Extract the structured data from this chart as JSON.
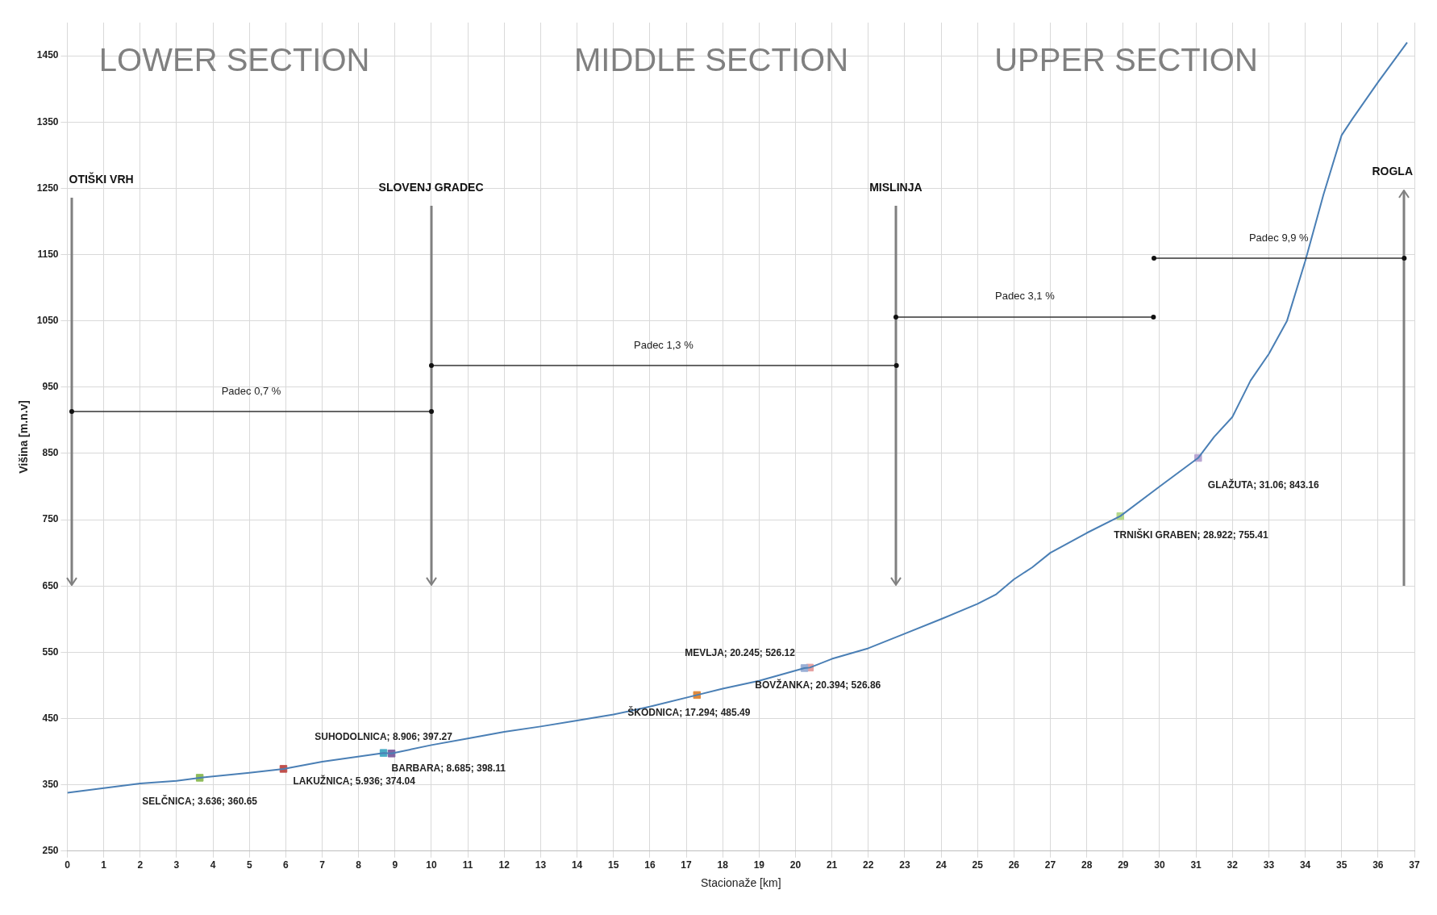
{
  "chart_data": {
    "type": "line",
    "xlabel": "Stacionaže [km]",
    "ylabel": "Višina [m.n.v]",
    "xlim": [
      0,
      37
    ],
    "xticks": [
      0,
      1,
      2,
      3,
      4,
      5,
      6,
      7,
      8,
      9,
      10,
      11,
      12,
      13,
      14,
      15,
      16,
      17,
      18,
      19,
      20,
      21,
      22,
      23,
      24,
      25,
      26,
      27,
      28,
      29,
      30,
      31,
      32,
      33,
      34,
      35,
      36,
      37
    ],
    "ylim": [
      250,
      1500
    ],
    "yticks": [
      250,
      350,
      450,
      550,
      650,
      750,
      850,
      950,
      1050,
      1150,
      1250,
      1350,
      1450
    ],
    "grid": true,
    "legend": false,
    "marker": "square",
    "series": [
      {
        "color": "#4a7fb5",
        "marker": "none",
        "x": [
          0,
          1,
          2,
          3,
          3.636,
          5,
          5.936,
          7,
          8.685,
          8.906,
          10,
          11,
          12,
          13,
          14,
          15,
          15.5,
          16,
          17.294,
          18,
          19,
          20.245,
          20.394,
          21,
          22,
          23,
          24,
          25,
          25.5,
          26,
          26.5,
          27,
          28,
          28.922,
          30,
          31.06,
          31.5,
          32,
          32.5,
          33,
          33.5,
          34,
          34.5,
          35,
          35.3,
          36,
          36.8
        ],
        "values": [
          338,
          345,
          352,
          356,
          360.65,
          368,
          374.04,
          385,
          398.11,
          397.27,
          410,
          420,
          430,
          438,
          447,
          456,
          462,
          468,
          485.49,
          495,
          507,
          526.12,
          526.86,
          540,
          556,
          578,
          600,
          623,
          637,
          660,
          678,
          700,
          730,
          755.41,
          800,
          843.16,
          875,
          905,
          960,
          1000,
          1050,
          1140,
          1240,
          1330,
          1355,
          1410,
          1470
        ]
      },
      {
        "type": "scatter",
        "color": "#8fbc5a",
        "x": [
          3.636
        ],
        "values": [
          360.65
        ],
        "value_labels": [
          "SELČNICA; 3.636; 360.65"
        ]
      },
      {
        "type": "scatter",
        "color": "#c0504d",
        "x": [
          5.936
        ],
        "values": [
          374.04
        ],
        "value_labels": [
          "LAKUŽNICA; 5.936; 374.04"
        ]
      },
      {
        "type": "scatter",
        "color": "#4bacc6",
        "x": [
          8.685
        ],
        "values": [
          398.11
        ],
        "value_labels": [
          "BARBARA; 8.685; 398.11"
        ]
      },
      {
        "type": "scatter",
        "color": "#8064a2",
        "x": [
          8.906
        ],
        "values": [
          397.27
        ],
        "value_labels": [
          "SUHODOLNICA; 8.906; 397.27"
        ]
      },
      {
        "type": "scatter",
        "color": "#e08a3c",
        "x": [
          17.294
        ],
        "values": [
          485.49
        ],
        "value_labels": [
          "ŠKODNICA; 17.294; 485.49"
        ]
      },
      {
        "type": "scatter",
        "color": "#9bb0d6",
        "x": [
          20.245
        ],
        "values": [
          526.12
        ],
        "value_labels": [
          "MEVLJA; 20.245; 526.12"
        ]
      },
      {
        "type": "scatter",
        "color": "#e6a0a0",
        "x": [
          20.394
        ],
        "values": [
          526.86
        ],
        "value_labels": [
          "BOVŽANKA; 20.394; 526.86"
        ]
      },
      {
        "type": "scatter",
        "color": "#b5d88a",
        "x": [
          28.922
        ],
        "values": [
          755.41
        ],
        "value_labels": [
          "TRNIŠKI GRABEN; 28.922; 755.41"
        ]
      },
      {
        "type": "scatter",
        "color": "#b9a6d2",
        "x": [
          31.06
        ],
        "values": [
          843.16
        ],
        "value_labels": [
          "GLAŽUTA; 31.06; 843.16"
        ]
      }
    ],
    "annotations": [
      "OTIŠKI VRH",
      "SLOVENJ GRADEC",
      "MISLINJA",
      "ROGLA",
      "Padec 0,7 %",
      "Padec 1,3 %",
      "Padec 3,1 %",
      "Padec 9,9 %",
      "LOWER SECTION",
      "MIDDLE SECTION",
      "UPPER SECTION"
    ]
  }
}
